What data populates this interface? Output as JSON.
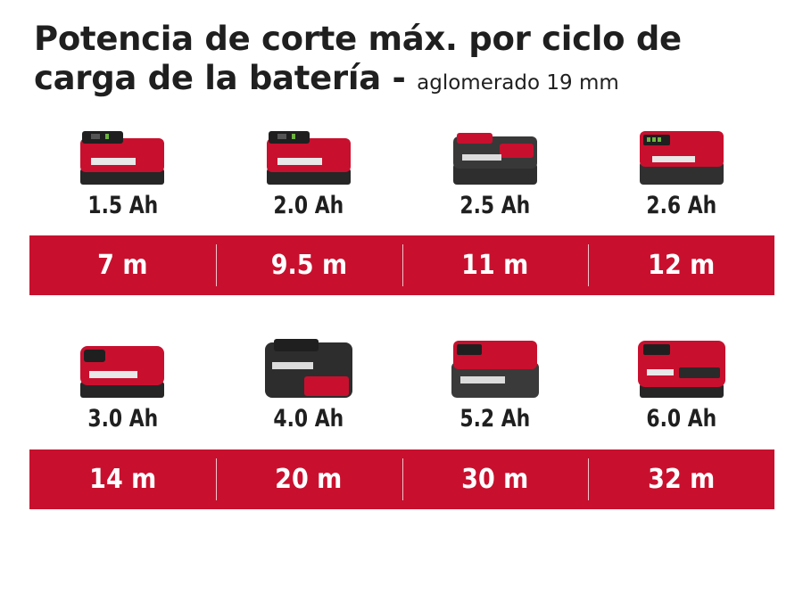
{
  "title": {
    "main": "Potencia de corte máx. por ciclo de carga de la batería - ",
    "sub": "aglomerado 19 mm"
  },
  "colors": {
    "accent": "#c8102e",
    "battery_body": "#2a2a2a"
  },
  "rows": [
    {
      "batteries": [
        {
          "capacity": "1.5 Ah",
          "icon": "battery-pack-icon"
        },
        {
          "capacity": "2.0 Ah",
          "icon": "battery-pack-icon"
        },
        {
          "capacity": "2.5 Ah",
          "icon": "battery-pack-icon"
        },
        {
          "capacity": "2.6 Ah",
          "icon": "battery-pack-icon"
        }
      ],
      "cuts": [
        "7 m",
        "9.5 m",
        "11 m",
        "12 m"
      ]
    },
    {
      "batteries": [
        {
          "capacity": "3.0 Ah",
          "icon": "battery-pack-icon"
        },
        {
          "capacity": "4.0 Ah",
          "icon": "battery-pack-icon"
        },
        {
          "capacity": "5.2 Ah",
          "icon": "battery-pack-icon"
        },
        {
          "capacity": "6.0 Ah",
          "icon": "battery-pack-icon"
        }
      ],
      "cuts": [
        "14 m",
        "20 m",
        "30 m",
        "32 m"
      ]
    }
  ]
}
